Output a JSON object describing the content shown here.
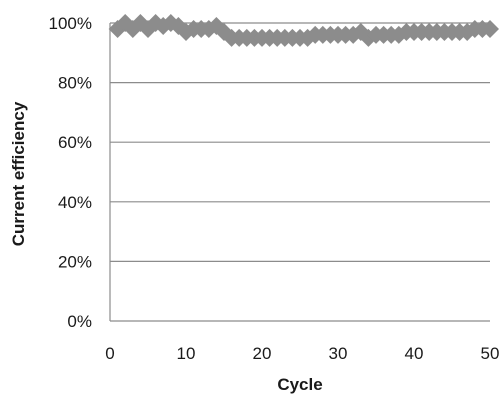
{
  "chart_data": {
    "type": "scatter",
    "title": "",
    "xlabel": "Cycle",
    "ylabel": "Current efficiency",
    "xlim": [
      0,
      50
    ],
    "ylim": [
      0,
      100
    ],
    "x_ticks": [
      0,
      10,
      20,
      30,
      40,
      50
    ],
    "y_ticks": [
      0,
      20,
      40,
      60,
      80,
      100
    ],
    "y_tick_format": "percent",
    "grid": "horizontal",
    "marker": "diamond",
    "colors": {
      "marker": "#8c8c8c",
      "line": "#8c8c8c",
      "grid": "#8c8c8c",
      "text": "#1a1a1a"
    },
    "series": [
      {
        "x": [
          1,
          2,
          3,
          4,
          5,
          6,
          7,
          8,
          9,
          10,
          11,
          12,
          13,
          14,
          15,
          16,
          17,
          18,
          19,
          20,
          21,
          22,
          23,
          24,
          25,
          26,
          27,
          28,
          29,
          30,
          31,
          32,
          33,
          34,
          35,
          36,
          37,
          38,
          39,
          40,
          41,
          42,
          43,
          44,
          45,
          46,
          47,
          48,
          49,
          50
        ],
        "values": [
          98,
          100,
          98,
          100,
          98,
          100,
          99,
          100,
          99,
          97,
          98,
          98,
          98,
          99,
          97,
          95,
          95,
          95,
          95,
          95,
          95,
          95,
          95,
          95,
          95,
          95,
          96,
          96,
          96,
          96,
          96,
          96,
          97,
          95,
          96,
          96,
          96,
          96,
          97,
          97,
          97,
          97,
          97,
          97,
          97,
          97,
          97,
          98,
          98,
          98
        ]
      }
    ]
  }
}
